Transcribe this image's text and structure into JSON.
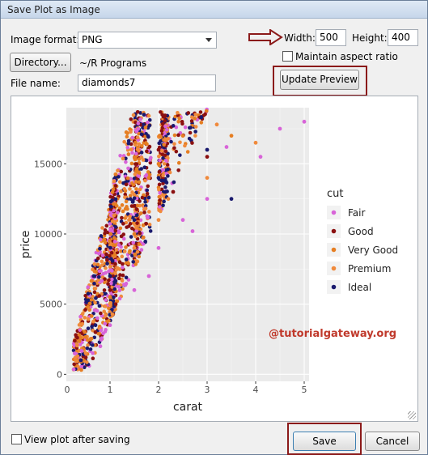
{
  "window": {
    "title": "Save Plot as Image"
  },
  "form": {
    "format_label": "Image format:",
    "format_value": "PNG",
    "directory_button": "Directory...",
    "directory_path": "~/R Programs",
    "filename_label": "File name:",
    "filename_value": "diamonds7",
    "width_label": "Width:",
    "width_value": "500",
    "height_label": "Height:",
    "height_value": "400",
    "aspect_label": "Maintain aspect ratio",
    "aspect_checked": false,
    "update_button": "Update Preview"
  },
  "footer": {
    "view_after_label": "View plot after saving",
    "view_after_checked": false,
    "save_button": "Save",
    "cancel_button": "Cancel"
  },
  "watermark": "@tutorialgateway.org",
  "chart_data": {
    "type": "scatter",
    "xlabel": "carat",
    "ylabel": "price",
    "xlim": [
      0.1,
      5.1
    ],
    "ylim": [
      -500,
      19000
    ],
    "x_ticks": [
      0,
      1,
      2,
      3,
      4,
      5
    ],
    "y_ticks": [
      0,
      5000,
      10000,
      15000
    ],
    "grid": true,
    "legend": {
      "title": "cut",
      "position": "right",
      "entries": [
        {
          "name": "Fair",
          "color": "#d864d8"
        },
        {
          "name": "Good",
          "color": "#8b1010"
        },
        {
          "name": "Very Good",
          "color": "#e67e22"
        },
        {
          "name": "Premium",
          "color": "#f08a3c"
        },
        {
          "name": "Ideal",
          "color": "#1a1a6e"
        }
      ]
    },
    "series": [
      {
        "name": "Fair",
        "points": [
          [
            5.0,
            18000
          ],
          [
            4.5,
            17500
          ],
          [
            3.0,
            12500
          ],
          [
            2.5,
            11000
          ],
          [
            2.0,
            9000
          ],
          [
            1.5,
            6000
          ],
          [
            1.0,
            3500
          ],
          [
            0.8,
            2000
          ],
          [
            4.1,
            15500
          ],
          [
            3.4,
            16200
          ],
          [
            2.7,
            10200
          ],
          [
            1.8,
            7000
          ]
        ]
      },
      {
        "name": "Good",
        "points": [
          [
            2.0,
            16000
          ],
          [
            1.5,
            12000
          ],
          [
            1.0,
            6000
          ],
          [
            0.7,
            3000
          ],
          [
            3.0,
            15500
          ],
          [
            2.3,
            13000
          ],
          [
            1.2,
            8000
          ],
          [
            0.5,
            1200
          ]
        ]
      },
      {
        "name": "Very Good",
        "points": [
          [
            2.0,
            15000
          ],
          [
            1.5,
            10000
          ],
          [
            1.0,
            5500
          ],
          [
            0.6,
            2500
          ],
          [
            2.5,
            17000
          ],
          [
            3.5,
            17000
          ],
          [
            1.8,
            14000
          ],
          [
            0.4,
            900
          ]
        ]
      },
      {
        "name": "Premium",
        "points": [
          [
            4.0,
            16500
          ],
          [
            3.0,
            14000
          ],
          [
            2.2,
            12500
          ],
          [
            1.5,
            9000
          ],
          [
            1.0,
            5000
          ],
          [
            0.5,
            1500
          ],
          [
            3.2,
            17800
          ],
          [
            2.0,
            11000
          ]
        ]
      },
      {
        "name": "Ideal",
        "points": [
          [
            3.5,
            12500
          ],
          [
            2.0,
            14000
          ],
          [
            1.5,
            11000
          ],
          [
            1.0,
            7000
          ],
          [
            0.7,
            3500
          ],
          [
            0.4,
            1000
          ],
          [
            3.0,
            16000
          ],
          [
            1.7,
            18500
          ]
        ]
      }
    ]
  }
}
